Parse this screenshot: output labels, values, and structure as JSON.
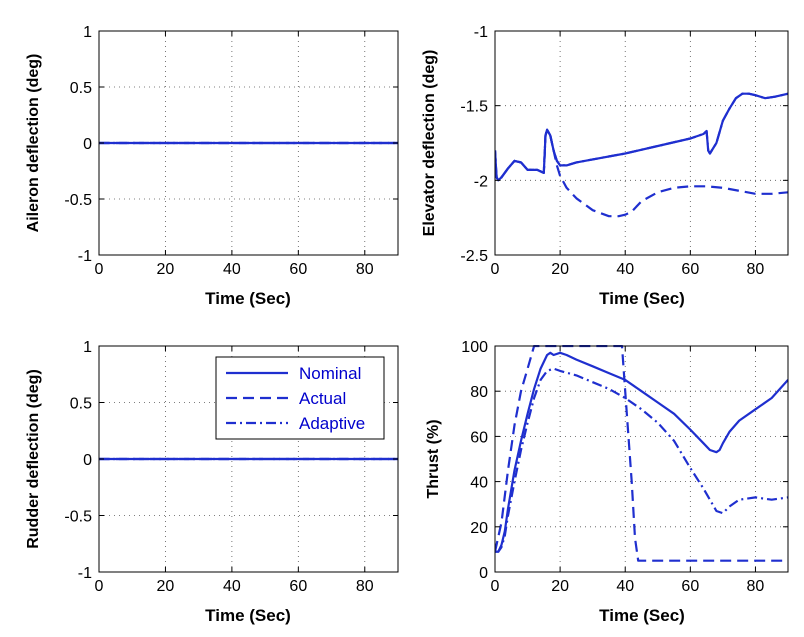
{
  "colors": {
    "line": "#1f2fcf",
    "axis": "#000000",
    "grid": "#555555"
  },
  "chart_data": [
    {
      "type": "line",
      "xlabel": "Time (Sec)",
      "ylabel": "Aileron deflection (deg)",
      "xlim": [
        0,
        90
      ],
      "ylim": [
        -1,
        1
      ],
      "xticks": [
        0,
        20,
        40,
        60,
        80
      ],
      "yticks": [
        -1,
        -0.5,
        0,
        0.5,
        1
      ],
      "grid": true,
      "series": [
        {
          "name": "Nominal",
          "style": "solid",
          "x": [
            0,
            90
          ],
          "y": [
            0,
            0
          ]
        },
        {
          "name": "Actual",
          "style": "dashed",
          "x": [
            0,
            90
          ],
          "y": [
            0,
            0
          ]
        },
        {
          "name": "Adaptive",
          "style": "dashdot",
          "x": [
            0,
            90
          ],
          "y": [
            0,
            0
          ]
        }
      ]
    },
    {
      "type": "line",
      "xlabel": "Time (Sec)",
      "ylabel": "Elevator deflection (deg)",
      "xlim": [
        0,
        90
      ],
      "ylim": [
        -2.5,
        -1
      ],
      "xticks": [
        0,
        20,
        40,
        60,
        80
      ],
      "yticks": [
        -2.5,
        -2,
        -1.5,
        -1
      ],
      "grid": true,
      "series": [
        {
          "name": "Nominal",
          "style": "solid",
          "x": [
            0,
            0.5,
            1,
            2,
            4,
            6,
            8,
            10,
            13,
            15,
            15.5,
            16,
            17,
            18,
            19,
            20,
            22,
            25,
            30,
            40,
            50,
            60,
            64,
            65,
            65.5,
            66,
            68,
            70,
            72,
            74,
            76,
            78,
            80,
            83,
            86,
            90
          ],
          "y": [
            -1.8,
            -1.98,
            -2.0,
            -1.98,
            -1.92,
            -1.87,
            -1.88,
            -1.93,
            -1.93,
            -1.95,
            -1.7,
            -1.66,
            -1.7,
            -1.8,
            -1.87,
            -1.9,
            -1.9,
            -1.88,
            -1.86,
            -1.82,
            -1.77,
            -1.72,
            -1.69,
            -1.67,
            -1.8,
            -1.82,
            -1.75,
            -1.6,
            -1.52,
            -1.45,
            -1.42,
            -1.42,
            -1.43,
            -1.45,
            -1.44,
            -1.42
          ]
        },
        {
          "name": "Actual",
          "style": "dashed",
          "x": [
            0,
            0.5,
            1,
            2,
            4,
            6,
            8,
            10,
            13,
            15,
            15.5,
            16,
            17,
            18,
            19,
            20,
            22,
            25,
            30,
            35,
            38,
            40,
            42,
            45,
            50,
            55,
            60,
            65,
            70,
            75,
            80,
            85,
            90
          ],
          "y": [
            -1.8,
            -1.98,
            -2.0,
            -1.98,
            -1.92,
            -1.87,
            -1.88,
            -1.93,
            -1.93,
            -1.95,
            -1.7,
            -1.66,
            -1.7,
            -1.8,
            -1.9,
            -1.97,
            -2.05,
            -2.12,
            -2.2,
            -2.24,
            -2.24,
            -2.23,
            -2.21,
            -2.14,
            -2.08,
            -2.05,
            -2.04,
            -2.04,
            -2.05,
            -2.07,
            -2.09,
            -2.09,
            -2.08
          ]
        },
        {
          "name": "Adaptive",
          "style": "dashdot",
          "x": [
            0,
            0.5,
            1,
            2,
            4,
            6,
            8,
            10,
            13,
            15,
            15.5,
            16,
            17,
            18,
            19,
            20,
            22,
            25,
            30,
            40,
            50,
            60,
            64,
            65,
            65.5,
            66,
            68,
            70,
            72,
            74,
            76,
            78,
            80,
            83,
            86,
            90
          ],
          "y": [
            -1.8,
            -1.98,
            -2.0,
            -1.98,
            -1.92,
            -1.87,
            -1.88,
            -1.93,
            -1.93,
            -1.95,
            -1.7,
            -1.66,
            -1.7,
            -1.8,
            -1.87,
            -1.9,
            -1.9,
            -1.88,
            -1.86,
            -1.82,
            -1.77,
            -1.72,
            -1.69,
            -1.67,
            -1.8,
            -1.82,
            -1.75,
            -1.6,
            -1.52,
            -1.45,
            -1.42,
            -1.42,
            -1.43,
            -1.45,
            -1.44,
            -1.42
          ]
        }
      ]
    },
    {
      "type": "line",
      "xlabel": "Time (Sec)",
      "ylabel": "Rudder deflection (deg)",
      "xlim": [
        0,
        90
      ],
      "ylim": [
        -1,
        1
      ],
      "xticks": [
        0,
        20,
        40,
        60,
        80
      ],
      "yticks": [
        -1,
        -0.5,
        0,
        0.5,
        1
      ],
      "grid": true,
      "legend": {
        "position": "top-right",
        "entries": [
          "Nominal",
          "Actual",
          "Adaptive"
        ]
      },
      "series": [
        {
          "name": "Nominal",
          "style": "solid",
          "x": [
            0,
            90
          ],
          "y": [
            0,
            0
          ]
        },
        {
          "name": "Actual",
          "style": "dashed",
          "x": [
            0,
            90
          ],
          "y": [
            0,
            0
          ]
        },
        {
          "name": "Adaptive",
          "style": "dashdot",
          "x": [
            0,
            90
          ],
          "y": [
            0,
            0
          ]
        }
      ]
    },
    {
      "type": "line",
      "xlabel": "Time (Sec)",
      "ylabel": "Thrust (%)",
      "xlim": [
        0,
        90
      ],
      "ylim": [
        0,
        100
      ],
      "xticks": [
        0,
        20,
        40,
        60,
        80
      ],
      "yticks": [
        0,
        20,
        40,
        60,
        80,
        100
      ],
      "grid": true,
      "series": [
        {
          "name": "Nominal",
          "style": "solid",
          "x": [
            0,
            1,
            2,
            3,
            4,
            6,
            8,
            10,
            12,
            14,
            16,
            17,
            18,
            20,
            22,
            25,
            30,
            35,
            40,
            45,
            50,
            55,
            60,
            64,
            66,
            68,
            69,
            70,
            72,
            75,
            80,
            85,
            90
          ],
          "y": [
            9,
            9,
            12,
            18,
            28,
            45,
            58,
            70,
            81,
            90,
            96,
            97,
            96,
            97,
            96,
            94,
            91,
            88,
            85,
            80,
            75,
            70,
            63,
            57,
            54,
            53,
            54,
            57,
            62,
            67,
            72,
            77,
            85
          ]
        },
        {
          "name": "Actual",
          "style": "dashed",
          "x": [
            0,
            2,
            4,
            6,
            8,
            10,
            12,
            14,
            16,
            18,
            20,
            30,
            39,
            40,
            42,
            43,
            44,
            45,
            50,
            60,
            70,
            80,
            90
          ],
          "y": [
            9,
            22,
            45,
            65,
            80,
            90,
            100,
            100,
            100,
            100,
            100,
            100,
            100,
            80,
            40,
            15,
            5,
            5,
            5,
            5,
            5,
            5,
            5
          ]
        },
        {
          "name": "Adaptive",
          "style": "dashdot",
          "x": [
            0,
            1,
            2,
            3,
            4,
            6,
            8,
            10,
            12,
            14,
            16,
            18,
            20,
            25,
            30,
            35,
            40,
            45,
            50,
            55,
            60,
            64,
            66,
            68,
            70,
            72,
            75,
            80,
            85,
            90
          ],
          "y": [
            9,
            9,
            11,
            16,
            25,
            40,
            54,
            66,
            77,
            85,
            89,
            90,
            89,
            87,
            84,
            81,
            77,
            72,
            66,
            58,
            46,
            37,
            32,
            27,
            26,
            29,
            32,
            33,
            32,
            33
          ]
        }
      ]
    }
  ]
}
